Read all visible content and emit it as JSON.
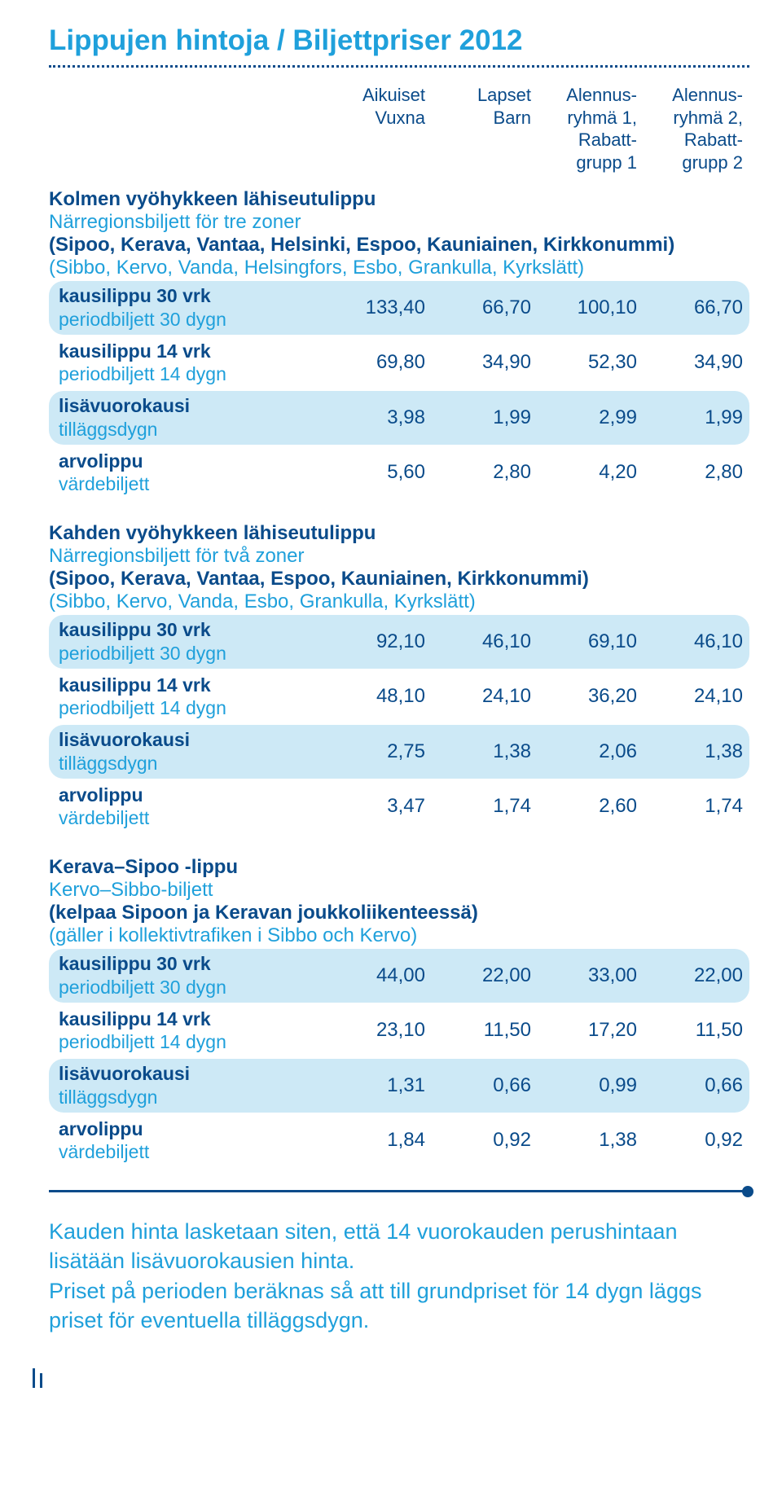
{
  "title": "Lippujen hintoja / Biljettpriser 2012",
  "columns": {
    "c1": {
      "l1": "Aikuiset",
      "l2": "Vuxna"
    },
    "c2": {
      "l1": "Lapset",
      "l2": "Barn"
    },
    "c3": {
      "l1": "Alennus-",
      "l2": "ryhmä 1,",
      "l3": "Rabatt-",
      "l4": "grupp 1"
    },
    "c4": {
      "l1": "Alennus-",
      "l2": "ryhmä 2,",
      "l3": "Rabatt-",
      "l4": "grupp 2"
    }
  },
  "sections": [
    {
      "title_fi": "Kolmen vyöhykkeen lähiseutulippu",
      "title_sv": "Närregionsbiljett för tre zoner",
      "note_fi": "(Sipoo, Kerava, Vantaa, Helsinki, Espoo, Kauniainen, Kirkkonummi)",
      "note_sv": "(Sibbo, Kervo, Vanda, Helsingfors, Esbo, Grankulla, Kyrkslätt)",
      "rows": [
        {
          "fi": "kausilippu 30 vrk",
          "sv": "periodbiljett 30 dygn",
          "v": [
            "133,40",
            "66,70",
            "100,10",
            "66,70"
          ]
        },
        {
          "fi": "kausilippu 14 vrk",
          "sv": "periodbiljett 14 dygn",
          "v": [
            "69,80",
            "34,90",
            "52,30",
            "34,90"
          ]
        },
        {
          "fi": "lisävuorokausi",
          "sv": "tilläggsdygn",
          "v": [
            "3,98",
            "1,99",
            "2,99",
            "1,99"
          ]
        },
        {
          "fi": "arvolippu",
          "sv": "värdebiljett",
          "v": [
            "5,60",
            "2,80",
            "4,20",
            "2,80"
          ]
        }
      ]
    },
    {
      "title_fi": "Kahden vyöhykkeen lähiseutulippu",
      "title_sv": "Närregionsbiljett för två zoner",
      "note_fi": "(Sipoo, Kerava, Vantaa, Espoo, Kauniainen, Kirkkonummi)",
      "note_sv": "(Sibbo, Kervo, Vanda, Esbo, Grankulla, Kyrkslätt)",
      "rows": [
        {
          "fi": "kausilippu 30 vrk",
          "sv": "periodbiljett 30 dygn",
          "v": [
            "92,10",
            "46,10",
            "69,10",
            "46,10"
          ]
        },
        {
          "fi": "kausilippu 14 vrk",
          "sv": "periodbiljett 14 dygn",
          "v": [
            "48,10",
            "24,10",
            "36,20",
            "24,10"
          ]
        },
        {
          "fi": "lisävuorokausi",
          "sv": "tilläggsdygn",
          "v": [
            "2,75",
            "1,38",
            "2,06",
            "1,38"
          ]
        },
        {
          "fi": "arvolippu",
          "sv": "värdebiljett",
          "v": [
            "3,47",
            "1,74",
            "2,60",
            "1,74"
          ]
        }
      ]
    },
    {
      "title_fi": "Kerava–Sipoo -lippu",
      "title_sv": "Kervo–Sibbo-biljett",
      "note_fi": "(kelpaa Sipoon ja Keravan joukkoliikenteessä)",
      "note_sv": " (gäller i kollektivtrafiken i Sibbo och Kervo)",
      "rows": [
        {
          "fi": "kausilippu 30 vrk",
          "sv": "periodbiljett 30 dygn",
          "v": [
            "44,00",
            "22,00",
            "33,00",
            "22,00"
          ]
        },
        {
          "fi": "kausilippu 14 vrk",
          "sv": "periodbiljett 14 dygn",
          "v": [
            "23,10",
            "11,50",
            "17,20",
            "11,50"
          ]
        },
        {
          "fi": "lisävuorokausi",
          "sv": "tilläggsdygn",
          "v": [
            "1,31",
            "0,66",
            "0,99",
            "0,66"
          ]
        },
        {
          "fi": "arvolippu",
          "sv": "värdebiljett",
          "v": [
            "1,84",
            "0,92",
            "1,38",
            "0,92"
          ]
        }
      ]
    }
  ],
  "footnote": "Kauden hinta lasketaan siten, että 14 vuorokauden perus­hintaan lisätään lisävuorokausien hinta.\nPriset på perioden beräknas så att till grundpriset för 14 dygn läggs priset för eventuella tilläggsdygn.",
  "colors": {
    "dark_blue": "#0a4b8a",
    "light_blue": "#1fa0db",
    "pill_bg": "#cde9f6",
    "white": "#ffffff"
  },
  "fontsizes": {
    "title": 35,
    "body": 24,
    "col_headers": 22,
    "footnote": 27
  }
}
